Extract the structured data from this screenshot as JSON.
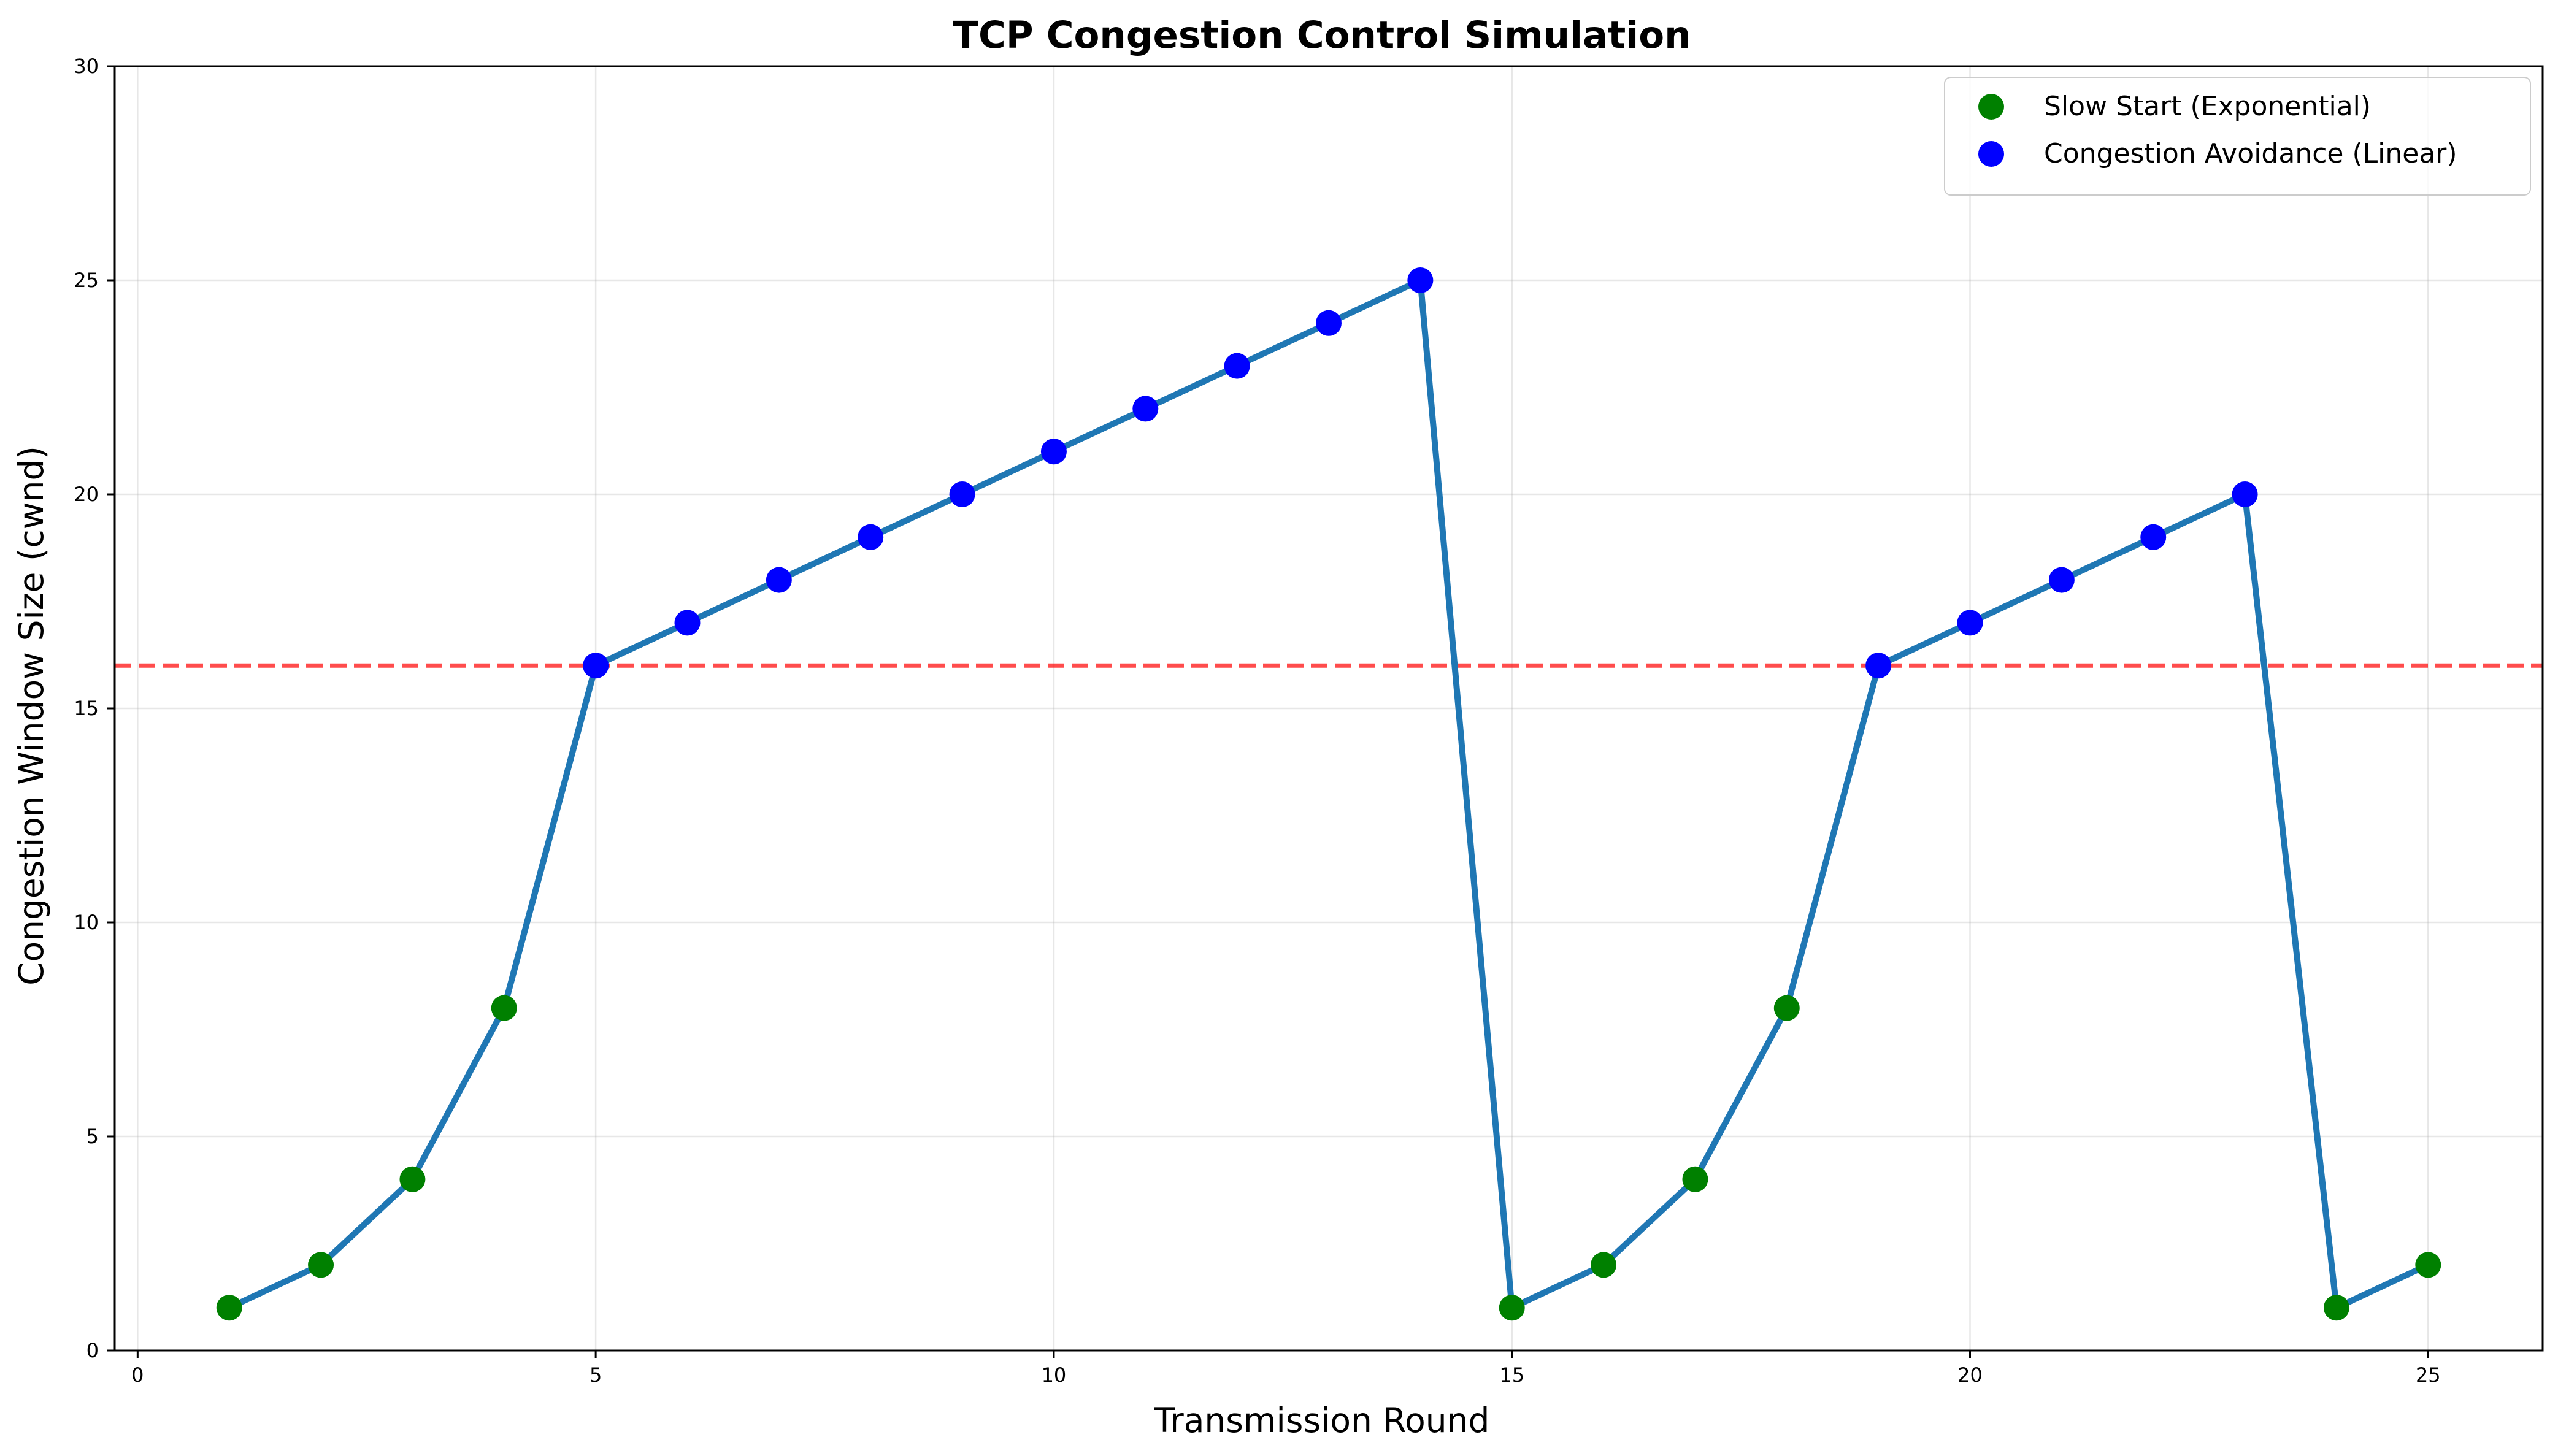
{
  "chart_data": {
    "type": "line",
    "title": "TCP Congestion Control Simulation",
    "xlabel": "Transmission Round",
    "ylabel": "Congestion Window Size (cwnd)",
    "xlim": [
      -0.25,
      26.25
    ],
    "ylim": [
      0,
      30
    ],
    "xticks": [
      0,
      5,
      10,
      15,
      20,
      25
    ],
    "yticks": [
      0,
      5,
      10,
      15,
      20,
      25,
      30
    ],
    "grid": true,
    "legend_position": "top-right",
    "x": [
      1,
      2,
      3,
      4,
      5,
      6,
      7,
      8,
      9,
      10,
      11,
      12,
      13,
      14,
      15,
      16,
      17,
      18,
      19,
      20,
      21,
      22,
      23,
      24,
      25
    ],
    "cwnd": [
      1,
      2,
      4,
      8,
      16,
      17,
      18,
      19,
      20,
      21,
      22,
      23,
      24,
      25,
      1,
      2,
      4,
      8,
      16,
      17,
      18,
      19,
      20,
      1,
      2
    ],
    "phase": [
      "slow_start",
      "slow_start",
      "slow_start",
      "slow_start",
      "congestion_avoidance",
      "congestion_avoidance",
      "congestion_avoidance",
      "congestion_avoidance",
      "congestion_avoidance",
      "congestion_avoidance",
      "congestion_avoidance",
      "congestion_avoidance",
      "congestion_avoidance",
      "congestion_avoidance",
      "slow_start",
      "slow_start",
      "slow_start",
      "slow_start",
      "congestion_avoidance",
      "congestion_avoidance",
      "congestion_avoidance",
      "congestion_avoidance",
      "congestion_avoidance",
      "slow_start",
      "slow_start"
    ],
    "threshold": 16,
    "series": [
      {
        "key": "slow_start",
        "name": "Slow Start (Exponential)",
        "color": "#008000"
      },
      {
        "key": "congestion_avoidance",
        "name": "Congestion Avoidance (Linear)",
        "color": "#0000ff"
      }
    ],
    "line_color": "#1f77b4",
    "threshold_color": "#ff0000"
  }
}
